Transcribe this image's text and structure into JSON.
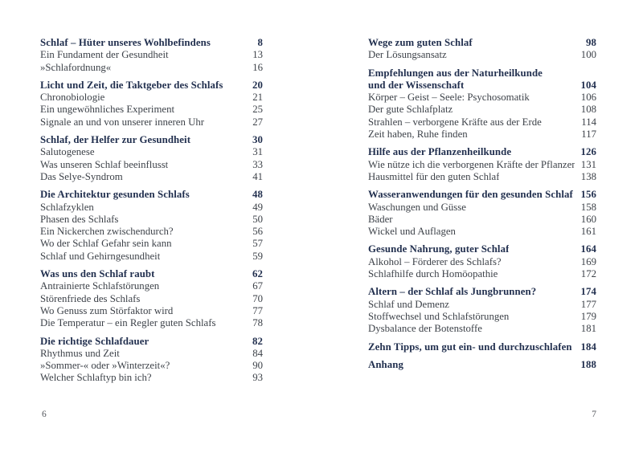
{
  "document": {
    "kind": "book-table-of-contents-spread"
  },
  "colors": {
    "background": "#ffffff",
    "heading": "#22304f",
    "body": "#3d4249",
    "folio": "#54575d"
  },
  "pages": [
    {
      "folio": "6",
      "sections": [
        {
          "entries": [
            {
              "title": "Schlaf – Hüter unseres Wohlbefindens",
              "page": "8",
              "heading": true
            },
            {
              "title": "Ein Fundament der Gesundheit",
              "page": "13"
            },
            {
              "title": "»Schlafordnung«",
              "page": "16"
            }
          ]
        },
        {
          "entries": [
            {
              "title": "Licht und Zeit, die Taktgeber des Schlafs",
              "page": "20",
              "heading": true
            },
            {
              "title": "Chronobiologie",
              "page": "21"
            },
            {
              "title": "Ein ungewöhnliches Experiment",
              "page": "25"
            },
            {
              "title": "Signale an und von unserer inneren Uhr",
              "page": "27"
            }
          ]
        },
        {
          "entries": [
            {
              "title": "Schlaf, der Helfer zur Gesundheit",
              "page": "30",
              "heading": true
            },
            {
              "title": "Salutogenese",
              "page": "31"
            },
            {
              "title": "Was unseren Schlaf beeinflusst",
              "page": "33"
            },
            {
              "title": "Das Selye-Syndrom",
              "page": "41"
            }
          ]
        },
        {
          "entries": [
            {
              "title": "Die Architektur gesunden Schlafs",
              "page": "48",
              "heading": true
            },
            {
              "title": "Schlafzyklen",
              "page": "49"
            },
            {
              "title": "Phasen des Schlafs",
              "page": "50"
            },
            {
              "title": "Ein Nickerchen zwischendurch?",
              "page": "56"
            },
            {
              "title": "Wo der Schlaf Gefahr sein kann",
              "page": "57"
            },
            {
              "title": "Schlaf und Gehirngesundheit",
              "page": "59"
            }
          ]
        },
        {
          "entries": [
            {
              "title": "Was uns den Schlaf raubt",
              "page": "62",
              "heading": true
            },
            {
              "title": "Antrainierte Schlafstörungen",
              "page": "67"
            },
            {
              "title": "Störenfriede des Schlafs",
              "page": "70"
            },
            {
              "title": "Wo Genuss zum Störfaktor wird",
              "page": "77"
            },
            {
              "title": "Die Temperatur – ein Regler guten Schlafs",
              "page": "78"
            }
          ]
        },
        {
          "entries": [
            {
              "title": "Die richtige Schlafdauer",
              "page": "82",
              "heading": true
            },
            {
              "title": "Rhythmus und Zeit",
              "page": "84"
            },
            {
              "title": "»Sommer-« oder »Winterzeit«?",
              "page": "90"
            },
            {
              "title": "Welcher Schlaftyp bin ich?",
              "page": "93"
            }
          ]
        }
      ]
    },
    {
      "folio": "7",
      "sections": [
        {
          "entries": [
            {
              "title": "Wege zum guten Schlaf",
              "page": "98",
              "heading": true
            },
            {
              "title": "Der Lösungsansatz",
              "page": "100"
            }
          ]
        },
        {
          "entries": [
            {
              "title": "Empfehlungen aus der Naturheilkunde",
              "page": "",
              "heading": true
            },
            {
              "title": "und der Wissenschaft",
              "page": "104",
              "heading": true
            },
            {
              "title": "Körper – Geist – Seele: Psychosomatik",
              "page": "106"
            },
            {
              "title": "Der gute Schlafplatz",
              "page": "108"
            },
            {
              "title": "Strahlen – verborgene Kräfte aus der Erde",
              "page": "114"
            },
            {
              "title": "Zeit haben, Ruhe finden",
              "page": "117"
            }
          ]
        },
        {
          "entries": [
            {
              "title": "Hilfe aus der Pflanzenheilkunde",
              "page": "126",
              "heading": true
            },
            {
              "title": "Wie nütze ich die verborgenen Kräfte der Pflanzen?",
              "page": "131"
            },
            {
              "title": "Hausmittel für den guten Schlaf",
              "page": "138"
            }
          ]
        },
        {
          "entries": [
            {
              "title": "Wasseranwendungen für den gesunden Schlaf",
              "page": "156",
              "heading": true
            },
            {
              "title": "Waschungen und Güsse",
              "page": "158"
            },
            {
              "title": "Bäder",
              "page": "160"
            },
            {
              "title": "Wickel und Auflagen",
              "page": "161"
            }
          ]
        },
        {
          "entries": [
            {
              "title": "Gesunde Nahrung, guter Schlaf",
              "page": "164",
              "heading": true
            },
            {
              "title": "Alkohol – Förderer des Schlafs?",
              "page": "169"
            },
            {
              "title": "Schlafhilfe durch Homöopathie",
              "page": "172"
            }
          ]
        },
        {
          "entries": [
            {
              "title": "Altern – der Schlaf als Jungbrunnen?",
              "page": "174",
              "heading": true
            },
            {
              "title": "Schlaf und Demenz",
              "page": "177"
            },
            {
              "title": "Stoffwechsel und Schlafstörungen",
              "page": "179"
            },
            {
              "title": "Dysbalance der Botenstoffe",
              "page": "181"
            }
          ]
        },
        {
          "entries": [
            {
              "title": "Zehn Tipps, um gut ein- und durchzuschlafen",
              "page": "184",
              "heading": true
            }
          ]
        },
        {
          "entries": [
            {
              "title": "Anhang",
              "page": "188",
              "heading": true
            }
          ]
        }
      ]
    }
  ]
}
